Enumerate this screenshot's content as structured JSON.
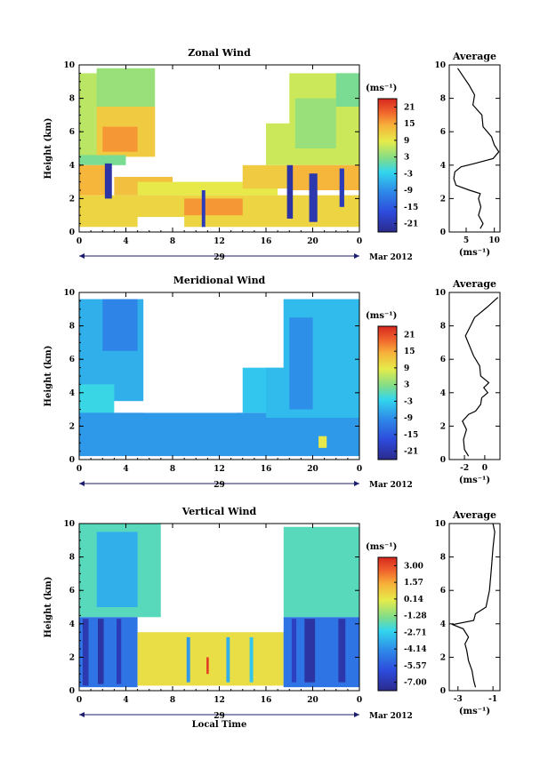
{
  "figure": {
    "x_title": "Local Time",
    "date_label": "Mar 2012",
    "day_label": "29",
    "unit_label": "(ms⁻¹)",
    "x_unit_label": "(ms⁻¹)",
    "y_title": "Height (km)",
    "avg_title": "Average",
    "x_ticks": [
      "0",
      "4",
      "8",
      "12",
      "16",
      "20",
      "0"
    ]
  },
  "chart_data": [
    {
      "type": "heatmap",
      "title": "Zonal Wind",
      "ylabel": "Height (km)",
      "xlabel": "",
      "x_range_hours": [
        0,
        24
      ],
      "ylim": [
        0,
        10
      ],
      "y_ticks": [
        "0",
        "2",
        "4",
        "6",
        "8",
        "10"
      ],
      "colorbar_ticks": [
        "21",
        "15",
        "9",
        "3",
        "-3",
        "-9",
        "-15",
        "-21"
      ],
      "colorbar_range": [
        -24,
        24
      ],
      "regions": [
        {
          "t0": 0,
          "t1": 3,
          "h0": 4.5,
          "h1": 9.5,
          "v": 6
        },
        {
          "t0": 1.5,
          "t1": 6.5,
          "h0": 7.5,
          "h1": 9.8,
          "v": 4
        },
        {
          "t0": 1.5,
          "t1": 7,
          "h0": 4.5,
          "h1": 7.5,
          "v": 12
        },
        {
          "t0": 2,
          "t1": 5,
          "h0": 4.8,
          "h1": 6.3,
          "v": 16
        },
        {
          "t0": 0,
          "t1": 4,
          "h0": 4.0,
          "h1": 4.6,
          "v": 2
        },
        {
          "t0": 0,
          "t1": 2.5,
          "h0": 2.2,
          "h1": 4.0,
          "v": 14
        },
        {
          "t0": 0,
          "t1": 24,
          "h0": 0.3,
          "h1": 2.2,
          "v": 11
        },
        {
          "t0": 3,
          "t1": 8,
          "h0": 2.2,
          "h1": 3.3,
          "v": 13
        },
        {
          "t0": 5,
          "t1": 17,
          "h0": 2.2,
          "h1": 3.0,
          "v": 9
        },
        {
          "t0": 14,
          "t1": 18,
          "h0": 2.6,
          "h1": 4.0,
          "v": 12
        },
        {
          "t0": 9,
          "t1": 14,
          "h0": 1.0,
          "h1": 2.0,
          "v": 16
        },
        {
          "t0": 16,
          "t1": 24,
          "h0": 4.0,
          "h1": 9.5,
          "v": 7
        },
        {
          "t0": 18.5,
          "t1": 22,
          "h0": 5.0,
          "h1": 8.0,
          "v": 4
        },
        {
          "t0": 22,
          "t1": 24,
          "h0": 7.5,
          "h1": 9.5,
          "v": 2
        },
        {
          "t0": 18,
          "t1": 24,
          "h0": 2.5,
          "h1": 4.0,
          "v": 14
        },
        {
          "t0": 2.2,
          "t1": 2.8,
          "h0": 2.0,
          "h1": 4.1,
          "v": -22
        },
        {
          "t0": 10.5,
          "t1": 10.8,
          "h0": 0.2,
          "h1": 2.5,
          "v": -20
        },
        {
          "t0": 17.8,
          "t1": 18.3,
          "h0": 0.8,
          "h1": 4.0,
          "v": -22
        },
        {
          "t0": 19.7,
          "t1": 20.4,
          "h0": 0.6,
          "h1": 3.5,
          "v": -21
        },
        {
          "t0": 22.3,
          "t1": 22.7,
          "h0": 1.5,
          "h1": 3.8,
          "v": -20
        }
      ],
      "gaps": [
        {
          "t0": 6.5,
          "t1": 16,
          "h0": 4.3,
          "h1": 10
        },
        {
          "t0": 16,
          "t1": 18,
          "h0": 6.5,
          "h1": 10
        },
        {
          "t0": 5,
          "t1": 9,
          "h0": 0,
          "h1": 0.9
        },
        {
          "t0": 0,
          "t1": 24,
          "h0": 0,
          "h1": 0.3
        }
      ],
      "avg_xlim": [
        2,
        11
      ],
      "avg_xticks": [
        "5",
        "10"
      ],
      "avg_profile": [
        [
          7.5,
          0.2
        ],
        [
          8,
          0.5
        ],
        [
          7.2,
          1.0
        ],
        [
          7.6,
          1.5
        ],
        [
          7.2,
          2.0
        ],
        [
          7.5,
          2.3
        ],
        [
          5.6,
          2.5
        ],
        [
          3.2,
          2.8
        ],
        [
          2.8,
          3.2
        ],
        [
          3.0,
          3.6
        ],
        [
          4.1,
          3.9
        ],
        [
          6.5,
          4.1
        ],
        [
          9.8,
          4.4
        ],
        [
          10.8,
          4.8
        ],
        [
          10,
          5.2
        ],
        [
          9.5,
          5.7
        ],
        [
          8,
          6.3
        ],
        [
          7.8,
          7.0
        ],
        [
          6.2,
          7.6
        ],
        [
          6.5,
          8.2
        ],
        [
          5.5,
          8.8
        ],
        [
          4.5,
          9.3
        ],
        [
          3.5,
          9.8
        ]
      ]
    },
    {
      "type": "heatmap",
      "title": "Meridional Wind",
      "ylabel": "Height (km)",
      "xlabel": "",
      "x_range_hours": [
        0,
        24
      ],
      "ylim": [
        0,
        10
      ],
      "y_ticks": [
        "0",
        "2",
        "4",
        "6",
        "8",
        "10"
      ],
      "colorbar_ticks": [
        "21",
        "15",
        "9",
        "3",
        "-3",
        "-9",
        "-15",
        "-21"
      ],
      "colorbar_range": [
        -24,
        24
      ],
      "regions": [
        {
          "t0": 0,
          "t1": 6,
          "h0": 3.5,
          "h1": 9.6,
          "v": -6
        },
        {
          "t0": 2,
          "t1": 5,
          "h0": 6.5,
          "h1": 9.6,
          "v": -10
        },
        {
          "t0": 0,
          "t1": 3,
          "h0": 1.0,
          "h1": 4.5,
          "v": -2
        },
        {
          "t0": 0,
          "t1": 24,
          "h0": 0.2,
          "h1": 2.8,
          "v": -8
        },
        {
          "t0": 14,
          "t1": 18,
          "h0": 2.8,
          "h1": 5.5,
          "v": -4
        },
        {
          "t0": 16,
          "t1": 24,
          "h0": 2.5,
          "h1": 9.6,
          "v": -5
        },
        {
          "t0": 18,
          "t1": 20,
          "h0": 3.0,
          "h1": 8.5,
          "v": -9
        },
        {
          "t0": 20.5,
          "t1": 21.2,
          "h0": 0.7,
          "h1": 1.4,
          "v": 9
        }
      ],
      "gaps": [
        {
          "t0": 5.5,
          "t1": 13.5,
          "h0": 2.8,
          "h1": 10
        },
        {
          "t0": 13.5,
          "t1": 17.5,
          "h0": 5.5,
          "h1": 10
        },
        {
          "t0": 0,
          "t1": 24,
          "h0": 0,
          "h1": 0.2
        }
      ],
      "avg_xlim": [
        -3.5,
        1.5
      ],
      "avg_xticks": [
        "-2",
        "0"
      ],
      "avg_profile": [
        [
          -1.6,
          0.2
        ],
        [
          -2,
          0.6
        ],
        [
          -2.1,
          1.2
        ],
        [
          -1.8,
          1.8
        ],
        [
          -2.2,
          2.3
        ],
        [
          -1.6,
          2.7
        ],
        [
          -0.9,
          2.9
        ],
        [
          -0.4,
          3.3
        ],
        [
          -0.3,
          3.7
        ],
        [
          0.3,
          4.0
        ],
        [
          -0.1,
          4.3
        ],
        [
          0.4,
          4.6
        ],
        [
          -0.4,
          5.0
        ],
        [
          -0.5,
          5.6
        ],
        [
          -1.1,
          6.2
        ],
        [
          -1.5,
          6.8
        ],
        [
          -1.9,
          7.4
        ],
        [
          -1.4,
          8.0
        ],
        [
          -1.0,
          8.5
        ],
        [
          0.2,
          9.1
        ],
        [
          1.3,
          9.7
        ]
      ]
    },
    {
      "type": "heatmap",
      "title": "Vertical Wind",
      "ylabel": "Height (km)",
      "xlabel": "Local Time",
      "x_range_hours": [
        0,
        24
      ],
      "ylim": [
        0,
        10
      ],
      "y_ticks": [
        "0",
        "2",
        "4",
        "6",
        "8",
        "10"
      ],
      "colorbar_ticks": [
        "3.00",
        "1.57",
        "0.14",
        "-1.28",
        "-2.71",
        "-4.14",
        "-5.57",
        "-7.00"
      ],
      "colorbar_range": [
        -8,
        4
      ],
      "regions": [
        {
          "t0": 0,
          "t1": 7,
          "h0": 4.4,
          "h1": 10,
          "v": -2.0
        },
        {
          "t0": 1.5,
          "t1": 5,
          "h0": 5,
          "h1": 9.5,
          "v": -3.5
        },
        {
          "t0": 0,
          "t1": 5,
          "h0": 0.2,
          "h1": 4.4,
          "v": -5.0
        },
        {
          "t0": 0.3,
          "t1": 0.8,
          "h0": 0.3,
          "h1": 4.3,
          "v": -7.2
        },
        {
          "t0": 1.6,
          "t1": 2.1,
          "h0": 0.4,
          "h1": 4.3,
          "v": -7.5
        },
        {
          "t0": 3.2,
          "t1": 3.6,
          "h0": 0.4,
          "h1": 4.3,
          "v": -7.0
        },
        {
          "t0": 5,
          "t1": 17.5,
          "h0": 0.3,
          "h1": 3.5,
          "v": 0.5
        },
        {
          "t0": 9.2,
          "t1": 9.5,
          "h0": 0.5,
          "h1": 3.2,
          "v": -4.0
        },
        {
          "t0": 10.9,
          "t1": 11.1,
          "h0": 1.0,
          "h1": 2.0,
          "v": 3.5
        },
        {
          "t0": 12.6,
          "t1": 12.9,
          "h0": 0.5,
          "h1": 3.2,
          "v": -3.5
        },
        {
          "t0": 14.6,
          "t1": 14.9,
          "h0": 0.5,
          "h1": 3.2,
          "v": -3.0
        },
        {
          "t0": 17.5,
          "t1": 24,
          "h0": 4.4,
          "h1": 9.8,
          "v": -2.0
        },
        {
          "t0": 17.5,
          "t1": 24,
          "h0": 0.2,
          "h1": 4.4,
          "v": -5.0
        },
        {
          "t0": 19.3,
          "t1": 20.2,
          "h0": 0.5,
          "h1": 4.3,
          "v": -7.5
        },
        {
          "t0": 22.2,
          "t1": 22.8,
          "h0": 0.5,
          "h1": 4.3,
          "v": -7.3
        },
        {
          "t0": 18.2,
          "t1": 18.6,
          "h0": 0.5,
          "h1": 4.3,
          "v": -6.8
        }
      ],
      "gaps": [
        {
          "t0": 7,
          "t1": 17.5,
          "h0": 3.6,
          "h1": 10
        },
        {
          "t0": 0,
          "t1": 24,
          "h0": 0,
          "h1": 0.2
        }
      ],
      "avg_xlim": [
        -3.5,
        -0.6
      ],
      "avg_xticks": [
        "-3",
        "-1"
      ],
      "avg_profile": [
        [
          -2,
          0.2
        ],
        [
          -2.1,
          0.6
        ],
        [
          -2.2,
          1.2
        ],
        [
          -2.4,
          1.8
        ],
        [
          -2.5,
          2.4
        ],
        [
          -2.6,
          2.8
        ],
        [
          -2.4,
          3.2
        ],
        [
          -2.7,
          3.7
        ],
        [
          -3.3,
          3.95
        ],
        [
          -2.1,
          4.2
        ],
        [
          -2.0,
          4.6
        ],
        [
          -1.4,
          5.0
        ],
        [
          -1.2,
          6.0
        ],
        [
          -1.1,
          7.2
        ],
        [
          -1.0,
          8.5
        ],
        [
          -0.9,
          9.5
        ],
        [
          -1.0,
          10
        ]
      ]
    }
  ]
}
